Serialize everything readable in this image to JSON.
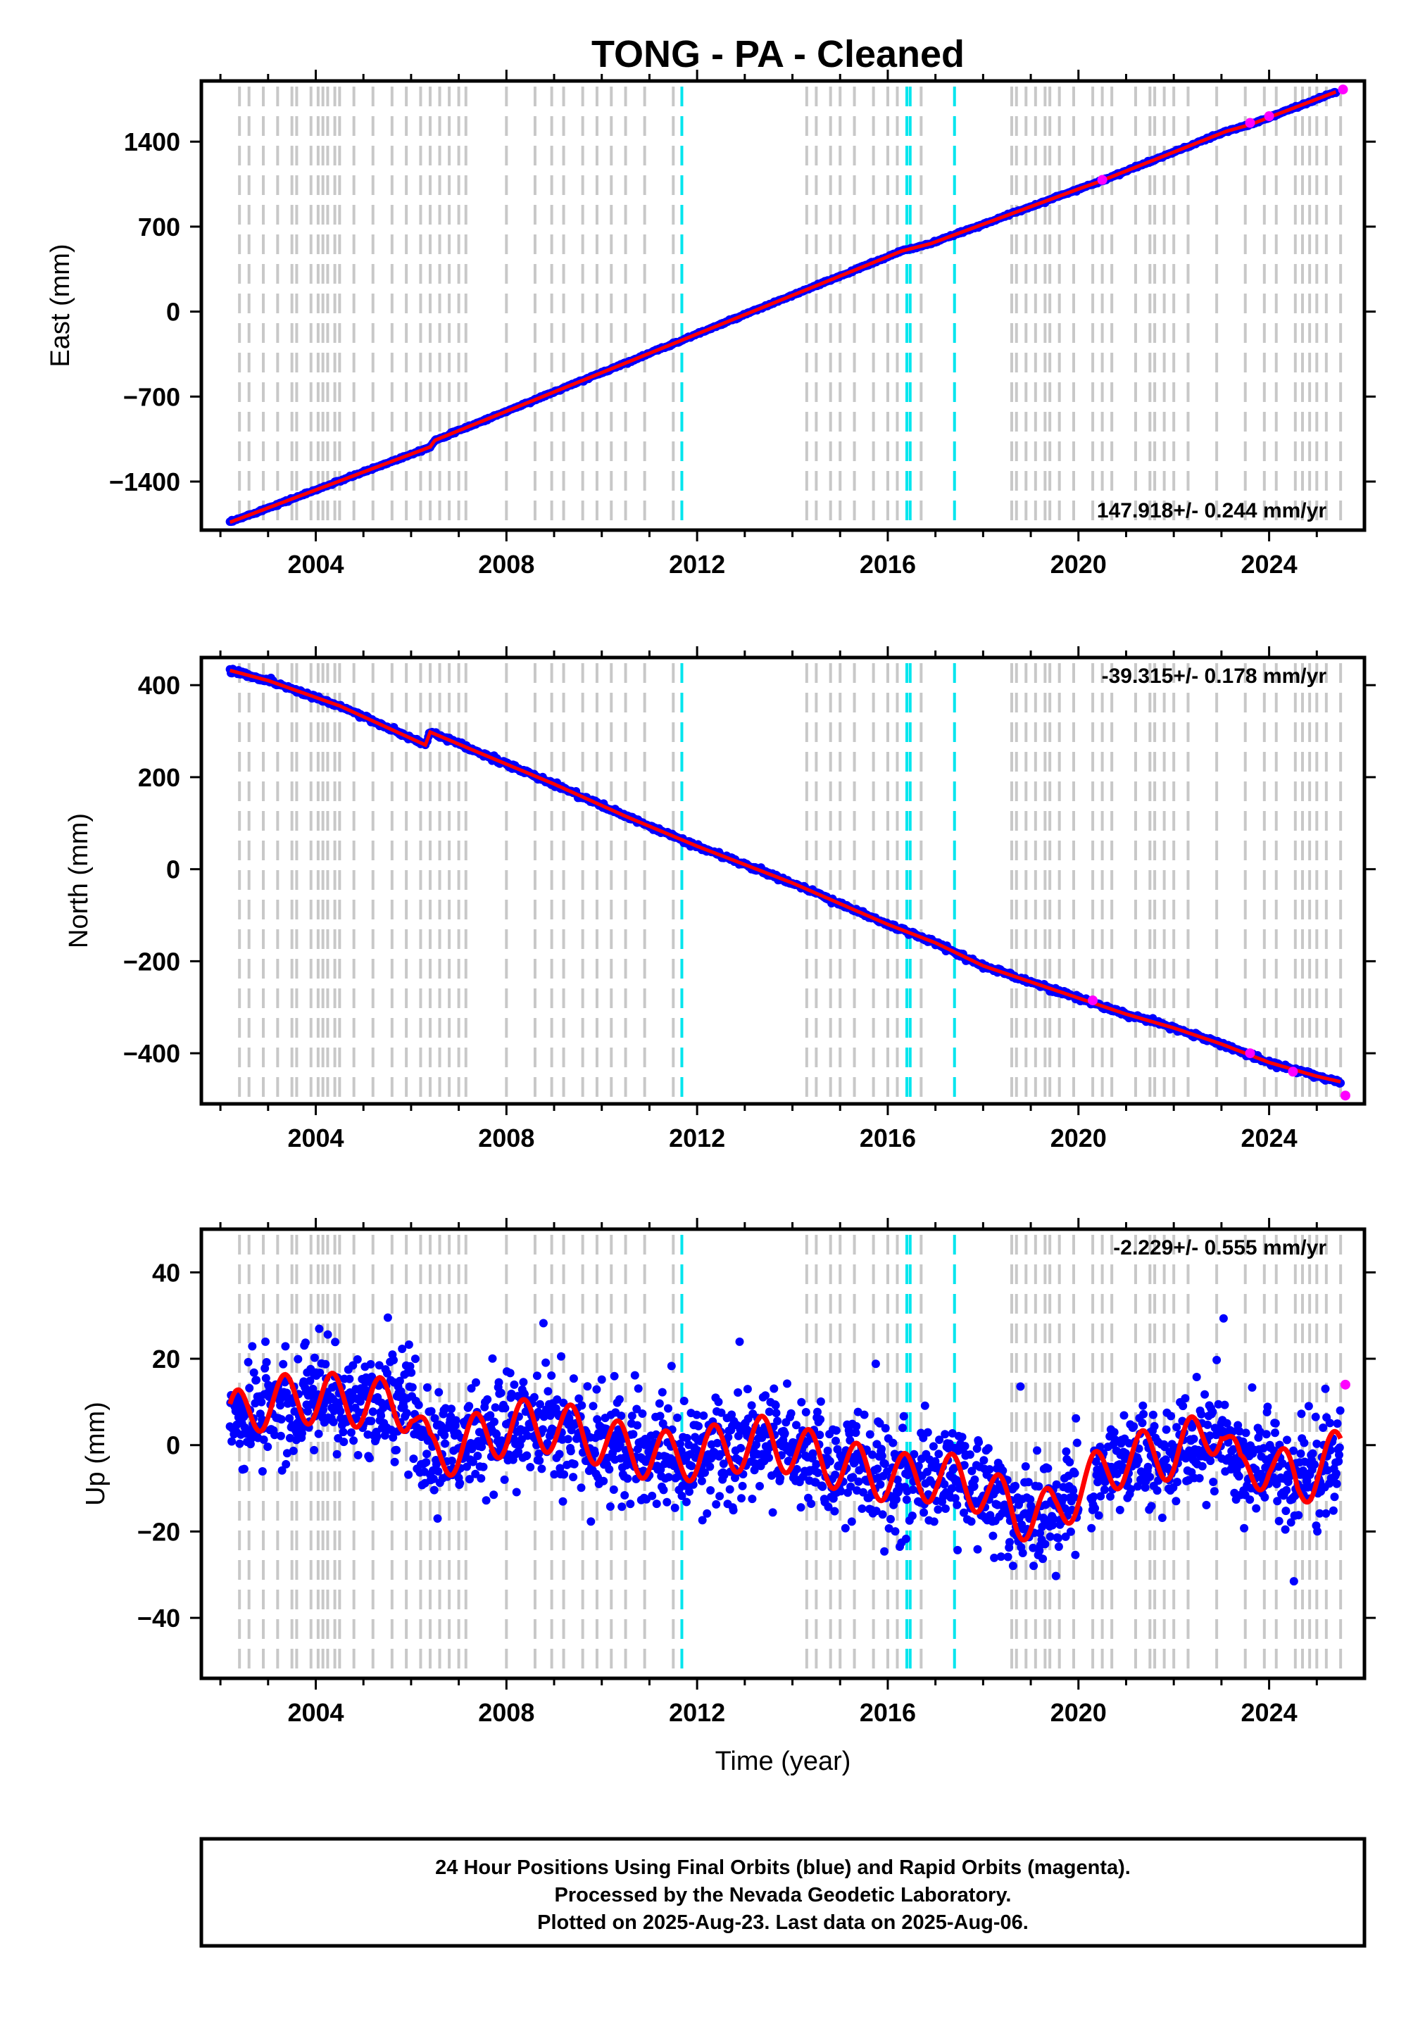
{
  "title": "TONG  - PA - Cleaned",
  "chart_data": [
    {
      "type": "scatter",
      "component": "east",
      "ylabel": "East (mm)",
      "xlabel": "",
      "xlim": [
        2001.6,
        2026.0
      ],
      "ylim": [
        -1800,
        1900
      ],
      "yticks": [
        -1400,
        -700,
        0,
        700,
        1400
      ],
      "ytick_labels": [
        "−1400",
        "−700",
        "0",
        "700",
        "1400"
      ],
      "xticks": [
        2004,
        2008,
        2012,
        2016,
        2020,
        2024
      ],
      "xtick_labels": [
        "2004",
        "2008",
        "2012",
        "2016",
        "2020",
        "2024"
      ],
      "rate_label": "147.918+/- 0.244 mm/yr",
      "rate_position": "bottom-right",
      "trend_points": [
        [
          2002.2,
          -1735
        ],
        [
          2006.4,
          -1115
        ],
        [
          2006.5,
          -1060
        ],
        [
          2016.3,
          500
        ],
        [
          2016.9,
          560
        ],
        [
          2020.0,
          1010
        ],
        [
          2020.4,
          1065
        ],
        [
          2023.1,
          1485
        ],
        [
          2023.6,
          1540
        ],
        [
          2025.4,
          1810
        ]
      ],
      "rapid_points": [
        [
          2020.5,
          1085
        ],
        [
          2023.6,
          1555
        ],
        [
          2024.0,
          1610
        ],
        [
          2025.55,
          1830
        ]
      ],
      "noise": 4
    },
    {
      "type": "scatter",
      "component": "north",
      "ylabel": "North (mm)",
      "xlabel": "",
      "xlim": [
        2001.6,
        2026.0
      ],
      "ylim": [
        -510,
        460
      ],
      "yticks": [
        -400,
        -200,
        0,
        200,
        400
      ],
      "ytick_labels": [
        "−400",
        "−200",
        "0",
        "200",
        "400"
      ],
      "xticks": [
        2004,
        2008,
        2012,
        2016,
        2020,
        2024
      ],
      "xtick_labels": [
        "2004",
        "2008",
        "2012",
        "2016",
        "2020",
        "2024"
      ],
      "rate_label": "-39.315+/- 0.178 mm/yr",
      "rate_position": "top-right",
      "trend_points": [
        [
          2002.2,
          432
        ],
        [
          2003.0,
          410
        ],
        [
          2004.5,
          355
        ],
        [
          2006.3,
          270
        ],
        [
          2006.4,
          298
        ],
        [
          2007.5,
          250
        ],
        [
          2009.0,
          185
        ],
        [
          2010.5,
          115
        ],
        [
          2012.0,
          50
        ],
        [
          2014.0,
          -30
        ],
        [
          2016.0,
          -120
        ],
        [
          2017.0,
          -160
        ],
        [
          2018.0,
          -210
        ],
        [
          2019.0,
          -245
        ],
        [
          2020.0,
          -280
        ],
        [
          2021.0,
          -315
        ],
        [
          2022.0,
          -345
        ],
        [
          2023.0,
          -380
        ],
        [
          2024.0,
          -420
        ],
        [
          2025.0,
          -450
        ],
        [
          2025.5,
          -462
        ]
      ],
      "rapid_points": [
        [
          2020.3,
          -285
        ],
        [
          2023.6,
          -400
        ],
        [
          2024.5,
          -440
        ],
        [
          2025.6,
          -492
        ]
      ],
      "noise": 2.5
    },
    {
      "type": "scatter",
      "component": "up",
      "ylabel": "Up (mm)",
      "xlabel": "Time (year)",
      "xlim": [
        2001.6,
        2026.0
      ],
      "ylim": [
        -54,
        50
      ],
      "yticks": [
        -40,
        -20,
        0,
        20,
        40
      ],
      "ytick_labels": [
        "−40",
        "−20",
        "0",
        "20",
        "40"
      ],
      "xticks": [
        2004,
        2008,
        2012,
        2016,
        2020,
        2024
      ],
      "xtick_labels": [
        "2004",
        "2008",
        "2012",
        "2016",
        "2020",
        "2024"
      ],
      "rate_label": "-2.229+/- 0.555 mm/yr",
      "rate_position": "top-right",
      "trend_points": [
        [
          2002.2,
          6
        ],
        [
          2003.0,
          10
        ],
        [
          2004.0,
          11
        ],
        [
          2005.0,
          10
        ],
        [
          2006.0,
          9
        ],
        [
          2006.4,
          -3
        ],
        [
          2007.5,
          2
        ],
        [
          2008.5,
          5
        ],
        [
          2009.5,
          3
        ],
        [
          2010.5,
          -1
        ],
        [
          2011.5,
          -3
        ],
        [
          2012.5,
          -1
        ],
        [
          2013.5,
          1
        ],
        [
          2014.5,
          -3
        ],
        [
          2015.5,
          -6
        ],
        [
          2016.3,
          -8
        ],
        [
          2017.0,
          -7
        ],
        [
          2018.0,
          -10
        ],
        [
          2018.7,
          -16
        ],
        [
          2019.5,
          -16
        ],
        [
          2020.0,
          -10
        ],
        [
          2021.0,
          -3
        ],
        [
          2022.0,
          -2
        ],
        [
          2023.0,
          5
        ],
        [
          2023.4,
          -8
        ],
        [
          2024.0,
          -3
        ],
        [
          2024.6,
          -10
        ],
        [
          2025.0,
          -5
        ],
        [
          2025.5,
          -2
        ]
      ],
      "rapid_points": [
        [
          2025.6,
          14
        ]
      ],
      "noise": 6,
      "season_amp": 6
    }
  ],
  "footer": {
    "line1": "24 Hour Positions Using Final Orbits (blue) and Rapid Orbits (magenta).",
    "line2": "Processed by the Nevada Geodetic Laboratory.",
    "line3": "Plotted on 2025-Aug-23. Last data on 2025-Aug-06."
  },
  "colors": {
    "final": "#0000ff",
    "rapid": "#ff00ff",
    "model": "#ff0000",
    "equipment_change": "#c8c8c8",
    "earthquake": "#00e5ee",
    "frame": "#000000"
  },
  "event_lines": {
    "gray": [
      2002.4,
      2002.6,
      2002.9,
      2003.2,
      2003.5,
      2003.6,
      2003.9,
      2004.05,
      2004.15,
      2004.25,
      2004.4,
      2004.5,
      2004.8,
      2005.2,
      2005.6,
      2005.9,
      2006.2,
      2006.4,
      2006.6,
      2006.8,
      2007.0,
      2007.15,
      2008.0,
      2008.6,
      2008.95,
      2009.2,
      2009.6,
      2009.9,
      2010.2,
      2010.5,
      2010.9,
      2011.5,
      2014.3,
      2014.5,
      2014.8,
      2015.0,
      2015.3,
      2015.7,
      2016.0,
      2016.2,
      2016.7,
      2018.6,
      2018.7,
      2018.9,
      2019.1,
      2019.3,
      2019.4,
      2019.6,
      2019.9,
      2020.3,
      2020.5,
      2020.7,
      2021.2,
      2021.5,
      2021.6,
      2021.8,
      2022.0,
      2022.3,
      2022.9,
      2023.5,
      2023.9,
      2024.15,
      2024.55,
      2024.7,
      2024.85,
      2025.0,
      2025.2,
      2025.5
    ],
    "cyan": [
      2011.68,
      2016.4,
      2016.47,
      2017.4
    ]
  }
}
